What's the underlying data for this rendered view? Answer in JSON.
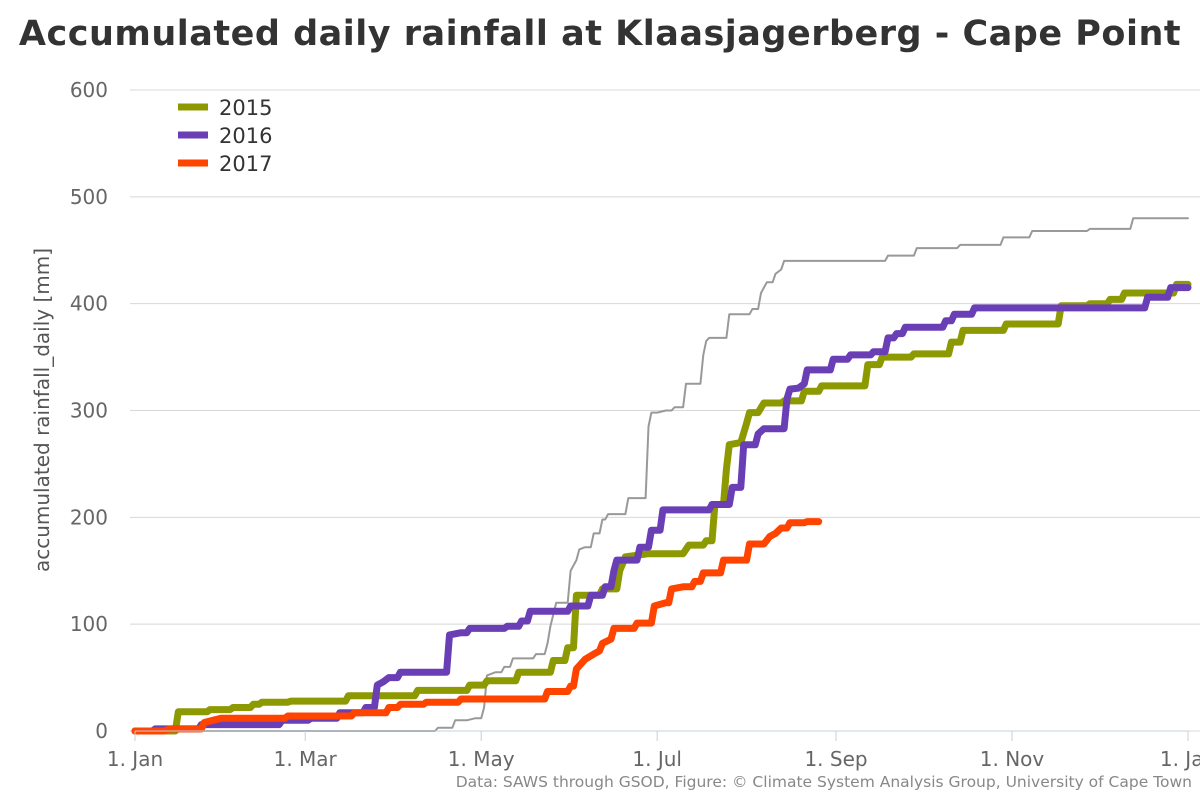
{
  "page": {
    "title": "Accumulated daily rainfall at Klaasjagerberg - Cape Point",
    "credits": "Data: SAWS through GSOD, Figure: © Climate System Analysis Group, University of Cape Town"
  },
  "chart_data": {
    "type": "line",
    "title": "Accumulated daily rainfall at Klaasjagerberg - Cape Point",
    "ylabel": "accumulated rainfall_daily [mm]",
    "xlabel": "",
    "ylim": [
      0,
      600
    ],
    "yticks": [
      "0",
      "100",
      "200",
      "300",
      "400",
      "500",
      "600"
    ],
    "xtick_labels": [
      "1. Jan",
      "1. Mar",
      "1. May",
      "1. Jul",
      "1. Sep",
      "1. Nov",
      "1. Jan"
    ],
    "xtick_days": [
      0,
      59,
      120,
      181,
      243,
      304,
      365
    ],
    "x_unit": "day of year",
    "grid": true,
    "legend_position": "top-left",
    "series": [
      {
        "name": "2015",
        "color": "#8c9900",
        "points": [
          [
            0,
            0
          ],
          [
            14,
            0
          ],
          [
            15,
            18
          ],
          [
            25,
            18
          ],
          [
            26,
            20
          ],
          [
            33,
            20
          ],
          [
            34,
            22
          ],
          [
            40,
            22
          ],
          [
            41,
            25
          ],
          [
            43,
            25
          ],
          [
            44,
            27
          ],
          [
            53,
            27
          ],
          [
            54,
            28
          ],
          [
            73,
            28
          ],
          [
            74,
            33
          ],
          [
            97,
            33
          ],
          [
            98,
            38
          ],
          [
            115,
            38
          ],
          [
            116,
            43
          ],
          [
            121,
            43
          ],
          [
            122,
            47
          ],
          [
            132,
            47
          ],
          [
            133,
            55
          ],
          [
            144,
            55
          ],
          [
            145,
            66
          ],
          [
            149,
            66
          ],
          [
            150,
            78
          ],
          [
            152,
            78
          ],
          [
            153,
            127
          ],
          [
            161,
            127
          ],
          [
            162,
            133
          ],
          [
            167,
            133
          ],
          [
            168,
            150
          ],
          [
            170,
            163
          ],
          [
            178,
            166
          ],
          [
            190,
            166
          ],
          [
            192,
            174
          ],
          [
            197,
            174
          ],
          [
            198,
            178
          ],
          [
            200,
            178
          ],
          [
            201,
            212
          ],
          [
            204,
            212
          ],
          [
            205,
            245
          ],
          [
            206,
            268
          ],
          [
            210,
            270
          ],
          [
            212,
            288
          ],
          [
            213,
            298
          ],
          [
            216,
            298
          ],
          [
            218,
            307
          ],
          [
            224,
            307
          ],
          [
            225,
            309
          ],
          [
            231,
            309
          ],
          [
            232,
            318
          ],
          [
            237,
            318
          ],
          [
            238,
            323
          ],
          [
            253,
            323
          ],
          [
            254,
            343
          ],
          [
            258,
            343
          ],
          [
            259,
            350
          ],
          [
            269,
            350
          ],
          [
            270,
            353
          ],
          [
            282,
            353
          ],
          [
            283,
            364
          ],
          [
            286,
            364
          ],
          [
            287,
            375
          ],
          [
            301,
            375
          ],
          [
            302,
            381
          ],
          [
            320,
            381
          ],
          [
            321,
            398
          ],
          [
            330,
            398
          ],
          [
            331,
            400
          ],
          [
            337,
            400
          ],
          [
            338,
            404
          ],
          [
            342,
            404
          ],
          [
            343,
            410
          ],
          [
            360,
            410
          ],
          [
            361,
            418
          ],
          [
            365,
            418
          ]
        ]
      },
      {
        "name": "2016",
        "color": "#6a3fb5",
        "points": [
          [
            0,
            0
          ],
          [
            6,
            0
          ],
          [
            7,
            2
          ],
          [
            22,
            2
          ],
          [
            23,
            6
          ],
          [
            50,
            6
          ],
          [
            51,
            10
          ],
          [
            60,
            10
          ],
          [
            61,
            12
          ],
          [
            70,
            12
          ],
          [
            71,
            17
          ],
          [
            79,
            17
          ],
          [
            80,
            22
          ],
          [
            83,
            22
          ],
          [
            84,
            43
          ],
          [
            86,
            46
          ],
          [
            88,
            50
          ],
          [
            91,
            50
          ],
          [
            92,
            55
          ],
          [
            108,
            55
          ],
          [
            109,
            90
          ],
          [
            113,
            92
          ],
          [
            115,
            92
          ],
          [
            116,
            96
          ],
          [
            128,
            96
          ],
          [
            129,
            98
          ],
          [
            133,
            98
          ],
          [
            134,
            103
          ],
          [
            136,
            103
          ],
          [
            137,
            112
          ],
          [
            150,
            112
          ],
          [
            151,
            117
          ],
          [
            157,
            117
          ],
          [
            158,
            127
          ],
          [
            162,
            127
          ],
          [
            163,
            135
          ],
          [
            165,
            135
          ],
          [
            166,
            150
          ],
          [
            167,
            160
          ],
          [
            174,
            160
          ],
          [
            175,
            172
          ],
          [
            178,
            172
          ],
          [
            179,
            188
          ],
          [
            182,
            188
          ],
          [
            183,
            207
          ],
          [
            199,
            207
          ],
          [
            200,
            212
          ],
          [
            206,
            212
          ],
          [
            207,
            228
          ],
          [
            210,
            228
          ],
          [
            211,
            268
          ],
          [
            215,
            268
          ],
          [
            216,
            278
          ],
          [
            218,
            283
          ],
          [
            225,
            283
          ],
          [
            226,
            311
          ],
          [
            227,
            320
          ],
          [
            230,
            321
          ],
          [
            232,
            325
          ],
          [
            233,
            338
          ],
          [
            241,
            338
          ],
          [
            242,
            348
          ],
          [
            247,
            348
          ],
          [
            248,
            352
          ],
          [
            255,
            352
          ],
          [
            256,
            355
          ],
          [
            260,
            355
          ],
          [
            261,
            368
          ],
          [
            263,
            368
          ],
          [
            264,
            372
          ],
          [
            266,
            372
          ],
          [
            267,
            378
          ],
          [
            280,
            378
          ],
          [
            281,
            384
          ],
          [
            283,
            384
          ],
          [
            284,
            390
          ],
          [
            290,
            390
          ],
          [
            291,
            396
          ],
          [
            315,
            396
          ],
          [
            316,
            396
          ],
          [
            336,
            396
          ],
          [
            337,
            396
          ],
          [
            350,
            396
          ],
          [
            351,
            406
          ],
          [
            358,
            406
          ],
          [
            359,
            415
          ],
          [
            365,
            415
          ]
        ]
      },
      {
        "name": "2017",
        "color": "#ff4400",
        "points": [
          [
            0,
            0
          ],
          [
            10,
            0
          ],
          [
            12,
            2
          ],
          [
            23,
            2
          ],
          [
            24,
            8
          ],
          [
            27,
            10
          ],
          [
            30,
            12
          ],
          [
            52,
            12
          ],
          [
            53,
            14
          ],
          [
            75,
            14
          ],
          [
            76,
            17
          ],
          [
            87,
            17
          ],
          [
            88,
            22
          ],
          [
            91,
            22
          ],
          [
            92,
            25
          ],
          [
            100,
            25
          ],
          [
            101,
            27
          ],
          [
            112,
            27
          ],
          [
            113,
            30
          ],
          [
            142,
            30
          ],
          [
            143,
            37
          ],
          [
            150,
            37
          ],
          [
            151,
            42
          ],
          [
            152,
            42
          ],
          [
            153,
            58
          ],
          [
            156,
            67
          ],
          [
            159,
            72
          ],
          [
            161,
            75
          ],
          [
            162,
            82
          ],
          [
            165,
            86
          ],
          [
            166,
            96
          ],
          [
            173,
            96
          ],
          [
            174,
            101
          ],
          [
            179,
            101
          ],
          [
            180,
            117
          ],
          [
            184,
            120
          ],
          [
            185,
            120
          ],
          [
            186,
            133
          ],
          [
            190,
            135
          ],
          [
            193,
            135
          ],
          [
            194,
            140
          ],
          [
            196,
            140
          ],
          [
            197,
            148
          ],
          [
            203,
            148
          ],
          [
            204,
            160
          ],
          [
            212,
            160
          ],
          [
            213,
            175
          ],
          [
            218,
            175
          ],
          [
            220,
            182
          ],
          [
            222,
            185
          ],
          [
            224,
            190
          ],
          [
            226,
            190
          ],
          [
            227,
            195
          ],
          [
            232,
            195
          ],
          [
            233,
            196
          ],
          [
            237,
            196
          ]
        ]
      },
      {
        "name": "",
        "color": "#999999",
        "points": [
          [
            0,
            0
          ],
          [
            104,
            0
          ],
          [
            105,
            3
          ],
          [
            110,
            3
          ],
          [
            111,
            10
          ],
          [
            115,
            10
          ],
          [
            118,
            12
          ],
          [
            120,
            12
          ],
          [
            121,
            22
          ],
          [
            122,
            52
          ],
          [
            125,
            55
          ],
          [
            127,
            55
          ],
          [
            128,
            60
          ],
          [
            130,
            60
          ],
          [
            131,
            68
          ],
          [
            138,
            68
          ],
          [
            139,
            72
          ],
          [
            142,
            72
          ],
          [
            143,
            82
          ],
          [
            144,
            98
          ],
          [
            146,
            120
          ],
          [
            150,
            120
          ],
          [
            151,
            150
          ],
          [
            153,
            160
          ],
          [
            154,
            170
          ],
          [
            156,
            172
          ],
          [
            158,
            172
          ],
          [
            159,
            185
          ],
          [
            161,
            185
          ],
          [
            162,
            198
          ],
          [
            163,
            198
          ],
          [
            164,
            203
          ],
          [
            170,
            203
          ],
          [
            171,
            218
          ],
          [
            177,
            218
          ],
          [
            178,
            285
          ],
          [
            179,
            298
          ],
          [
            181,
            298
          ],
          [
            184,
            300
          ],
          [
            186,
            300
          ],
          [
            187,
            303
          ],
          [
            190,
            303
          ],
          [
            191,
            325
          ],
          [
            196,
            325
          ],
          [
            197,
            352
          ],
          [
            198,
            365
          ],
          [
            199,
            368
          ],
          [
            205,
            368
          ],
          [
            206,
            390
          ],
          [
            213,
            390
          ],
          [
            214,
            395
          ],
          [
            216,
            395
          ],
          [
            217,
            410
          ],
          [
            219,
            420
          ],
          [
            221,
            420
          ],
          [
            222,
            428
          ],
          [
            224,
            432
          ],
          [
            225,
            440
          ],
          [
            260,
            440
          ],
          [
            261,
            445
          ],
          [
            270,
            445
          ],
          [
            271,
            452
          ],
          [
            285,
            452
          ],
          [
            286,
            455
          ],
          [
            300,
            455
          ],
          [
            301,
            462
          ],
          [
            310,
            462
          ],
          [
            311,
            468
          ],
          [
            330,
            468
          ],
          [
            331,
            470
          ],
          [
            345,
            470
          ],
          [
            346,
            480
          ],
          [
            365,
            480
          ]
        ]
      }
    ]
  }
}
